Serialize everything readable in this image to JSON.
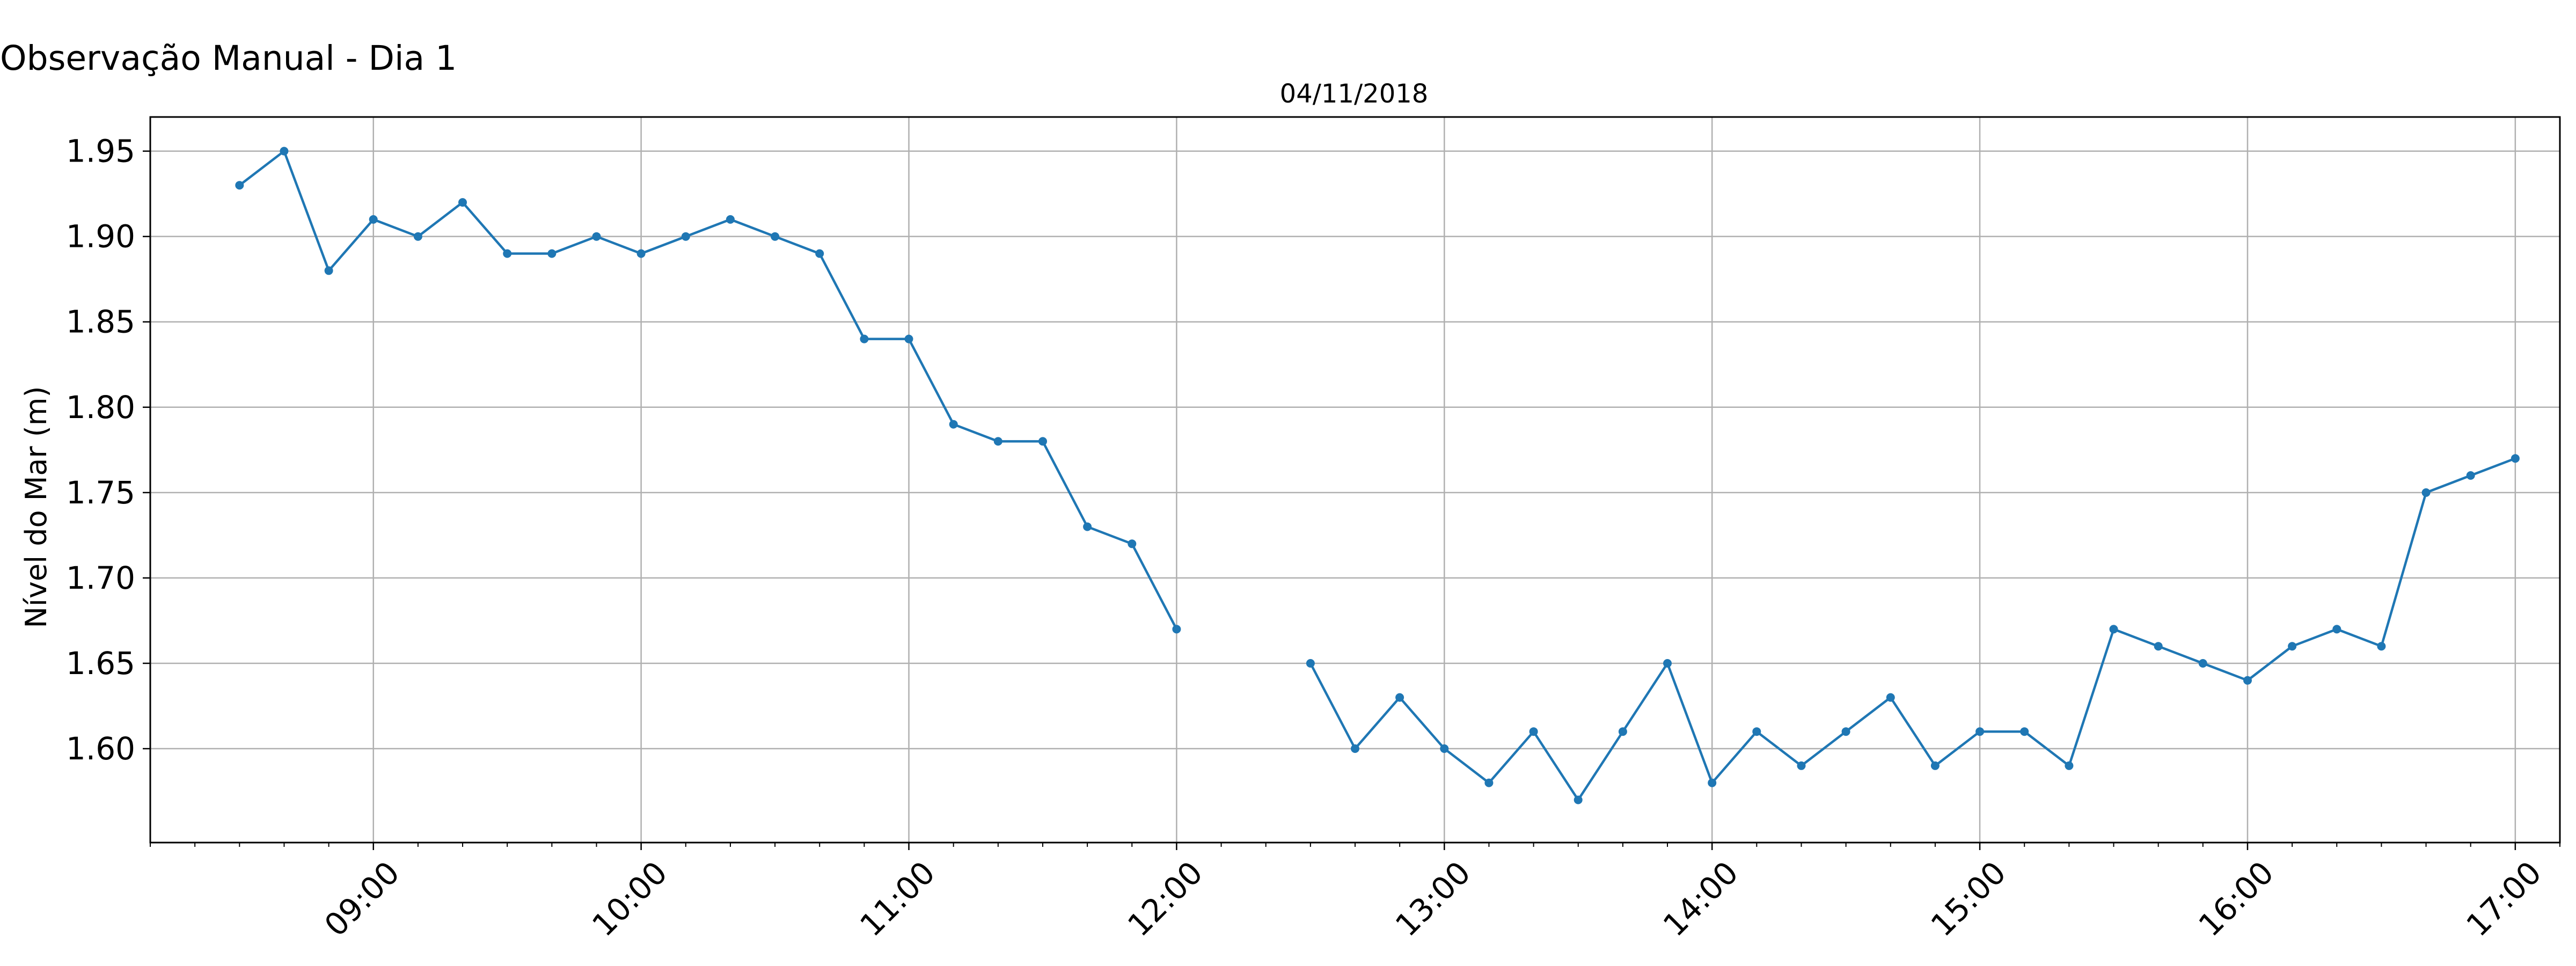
{
  "figure_title": "Observação Manual - Dia 1",
  "chart_data": {
    "type": "line",
    "title": "04/11/2018",
    "xlabel": "",
    "ylabel": "Nível do Mar (m)",
    "x_range": [
      "08:10",
      "17:10"
    ],
    "ylim": [
      1.545,
      1.97
    ],
    "y_ticks": [
      "1.60",
      "1.65",
      "1.70",
      "1.75",
      "1.80",
      "1.85",
      "1.90",
      "1.95"
    ],
    "x_ticks": [
      "09:00",
      "10:00",
      "11:00",
      "12:00",
      "13:00",
      "14:00",
      "15:00",
      "16:00",
      "17:00"
    ],
    "grid": true,
    "marker": "circle",
    "color": "#1f77b4",
    "series": [
      {
        "segments": [
          {
            "x": [
              "08:30",
              "08:40",
              "08:50",
              "09:00",
              "09:10",
              "09:20",
              "09:30",
              "09:40",
              "09:50",
              "10:00",
              "10:10",
              "10:20",
              "10:30",
              "10:40",
              "10:50",
              "11:00",
              "11:10",
              "11:20",
              "11:30",
              "11:40",
              "11:50",
              "12:00"
            ],
            "y": [
              1.93,
              1.95,
              1.88,
              1.91,
              1.9,
              1.92,
              1.89,
              1.89,
              1.9,
              1.89,
              1.9,
              1.91,
              1.9,
              1.89,
              1.84,
              1.84,
              1.79,
              1.78,
              1.78,
              1.73,
              1.72,
              1.67
            ]
          },
          {
            "x": [
              "12:30",
              "12:40",
              "12:50",
              "13:00",
              "13:10",
              "13:20",
              "13:30",
              "13:40",
              "13:50",
              "14:00",
              "14:10",
              "14:20",
              "14:30",
              "14:40",
              "14:50",
              "15:00",
              "15:10",
              "15:20",
              "15:30",
              "15:40",
              "15:50",
              "16:00",
              "16:10",
              "16:20",
              "16:30",
              "16:40",
              "16:50",
              "17:00"
            ],
            "y": [
              1.65,
              1.6,
              1.63,
              1.6,
              1.58,
              1.61,
              1.57,
              1.61,
              1.65,
              1.58,
              1.61,
              1.59,
              1.61,
              1.63,
              1.59,
              1.61,
              1.61,
              1.59,
              1.67,
              1.66,
              1.65,
              1.64,
              1.66,
              1.67,
              1.66,
              1.75,
              1.76,
              1.77
            ]
          }
        ]
      }
    ]
  }
}
